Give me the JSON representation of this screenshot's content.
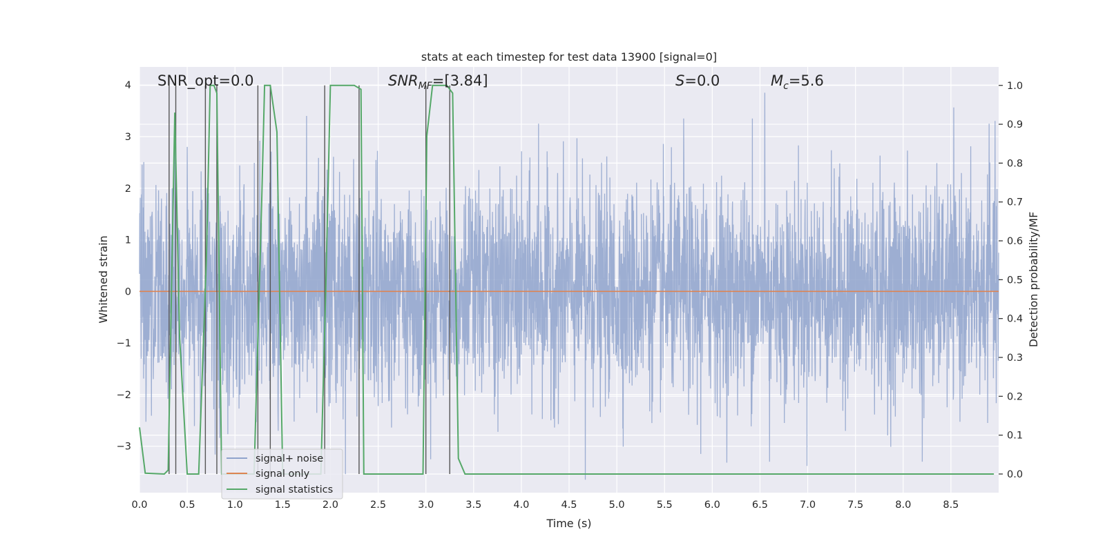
{
  "chart_data": {
    "type": "line",
    "title": "stats at each timestep for test data 13900 [signal=0]",
    "xlabel": "Time (s)",
    "ylabel": "Whitened strain",
    "ylabel_right": "Detection probability/MF",
    "xlim": [
      0.0,
      9.0
    ],
    "ylim": [
      -3.9,
      4.35
    ],
    "ylim_right": [
      -0.048,
      1.0475
    ],
    "x_ticks": [
      0.0,
      0.5,
      1.0,
      1.5,
      2.0,
      2.5,
      3.0,
      3.5,
      4.0,
      4.5,
      5.0,
      5.5,
      6.0,
      6.5,
      7.0,
      7.5,
      8.0,
      8.5
    ],
    "x_tick_labels": [
      "0.0",
      "0.5",
      "1.0",
      "1.5",
      "2.0",
      "2.5",
      "3.0",
      "3.5",
      "4.0",
      "4.5",
      "5.0",
      "5.5",
      "6.0",
      "6.5",
      "7.0",
      "7.5",
      "8.0",
      "8.5"
    ],
    "y_ticks": [
      -3,
      -2,
      -1,
      0,
      1,
      2,
      3,
      4
    ],
    "y_tick_labels": [
      "−3",
      "−2",
      "−1",
      "0",
      "1",
      "2",
      "3",
      "4"
    ],
    "y_right_ticks": [
      0.0,
      0.1,
      0.2,
      0.3,
      0.4,
      0.5,
      0.6,
      0.7,
      0.8,
      0.9,
      1.0
    ],
    "y_right_tick_labels": [
      "0.0",
      "0.1",
      "0.2",
      "0.3",
      "0.4",
      "0.5",
      "0.6",
      "0.7",
      "0.8",
      "0.9",
      "1.0"
    ],
    "grid": true,
    "legend_position": "lower-left",
    "annotations": {
      "snr_opt": "SNR_opt=0.0",
      "snr_mf_main": "SNR",
      "snr_mf_sub": "MF",
      "snr_mf_value": "=[3.84]",
      "s_main": "S",
      "s_value": "=0.0",
      "mc_main": "M",
      "mc_sub": "c",
      "mc_value": "=5.6"
    },
    "series": [
      {
        "name": "signal+ noise",
        "color": "#8fa3cc",
        "description": "whitened noise, roughly Gaussian with std ~1, spanning about -3.7 to 3.7",
        "peak_values": [
          {
            "x": 0.37,
            "y": 3.35
          },
          {
            "x": 0.5,
            "y": 2.8
          },
          {
            "x": 1.75,
            "y": 3.4
          },
          {
            "x": 4.18,
            "y": 3.25
          },
          {
            "x": 5.7,
            "y": 3.35
          },
          {
            "x": 6.42,
            "y": 3.35
          },
          {
            "x": 6.55,
            "y": 3.85
          },
          {
            "x": 8.9,
            "y": 3.25
          },
          {
            "x": 4.67,
            "y": -3.65
          },
          {
            "x": 5.88,
            "y": -3.15
          },
          {
            "x": 6.6,
            "y": -3.3
          },
          {
            "x": 8.2,
            "y": -3.3
          }
        ]
      },
      {
        "name": "signal only",
        "color": "#dd8452",
        "x": [
          0.0,
          9.0
        ],
        "y": [
          0.0,
          0.0
        ]
      },
      {
        "name": "signal statistics",
        "color": "#55a868",
        "axis": "right",
        "x": [
          0.0,
          0.06,
          0.26,
          0.3,
          0.37,
          0.42,
          0.5,
          0.62,
          0.7,
          0.74,
          0.78,
          0.81,
          0.86,
          1.2,
          1.28,
          1.31,
          1.37,
          1.44,
          1.5,
          1.9,
          1.95,
          2.0,
          2.25,
          2.32,
          2.35,
          2.45,
          2.97,
          3.01,
          3.07,
          3.22,
          3.28,
          3.34,
          3.41,
          8.95
        ],
        "y": [
          0.12,
          0.002,
          0.0,
          0.01,
          0.93,
          0.35,
          0.0,
          0.0,
          0.55,
          1.0,
          1.0,
          0.98,
          0.0,
          0.0,
          0.7,
          1.0,
          1.0,
          0.88,
          0.0,
          0.0,
          0.46,
          1.0,
          1.0,
          0.99,
          0.0,
          0.0,
          0.0,
          0.87,
          1.0,
          1.0,
          0.98,
          0.04,
          0.0,
          0.0
        ]
      }
    ],
    "vertical_markers": [
      0.31,
      0.38,
      0.69,
      0.81,
      1.24,
      1.37,
      1.94,
      2.3,
      3.0,
      3.25
    ]
  }
}
